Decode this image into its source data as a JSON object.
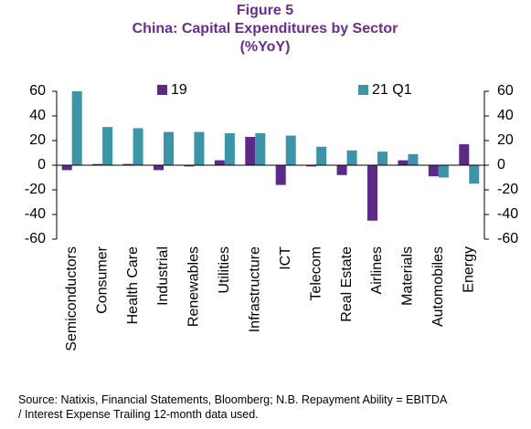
{
  "chart_data": {
    "type": "bar",
    "figure": "Figure 5",
    "title": "China: Capital Expenditures by Sector",
    "subtitle": "(%YoY)",
    "categories": [
      "Semiconductors",
      "Consumer",
      "Health Care",
      "Industrial",
      "Renewables",
      "Utilities",
      "Infrastructure",
      "ICT",
      "Telecom",
      "Real Estate",
      "Airlines",
      "Materials",
      "Automobiles",
      "Energy"
    ],
    "series": [
      {
        "name": "19",
        "color": "#5b2a86",
        "values": [
          -4,
          1,
          1,
          -4,
          -1,
          4,
          23,
          -16,
          -1,
          -8,
          -45,
          4,
          -9,
          17
        ]
      },
      {
        "name": "21 Q1",
        "color": "#3a95a8",
        "values": [
          60,
          31,
          30,
          27,
          27,
          26,
          26,
          24,
          15,
          12,
          11,
          9,
          -10,
          -15
        ]
      }
    ],
    "ylim": [
      -60,
      60
    ],
    "yticks": [
      -60,
      -40,
      -20,
      0,
      20,
      40,
      60
    ],
    "y2lim": [
      -60,
      60
    ],
    "y2ticks": [
      -60,
      -40,
      -20,
      0,
      20,
      40,
      60
    ],
    "grid": false,
    "source": "Source: Natixis, Financial Statements, Bloomberg; N.B. Repayment Ability = EBITDA / Interest Expense  Trailing 12-month data used."
  }
}
